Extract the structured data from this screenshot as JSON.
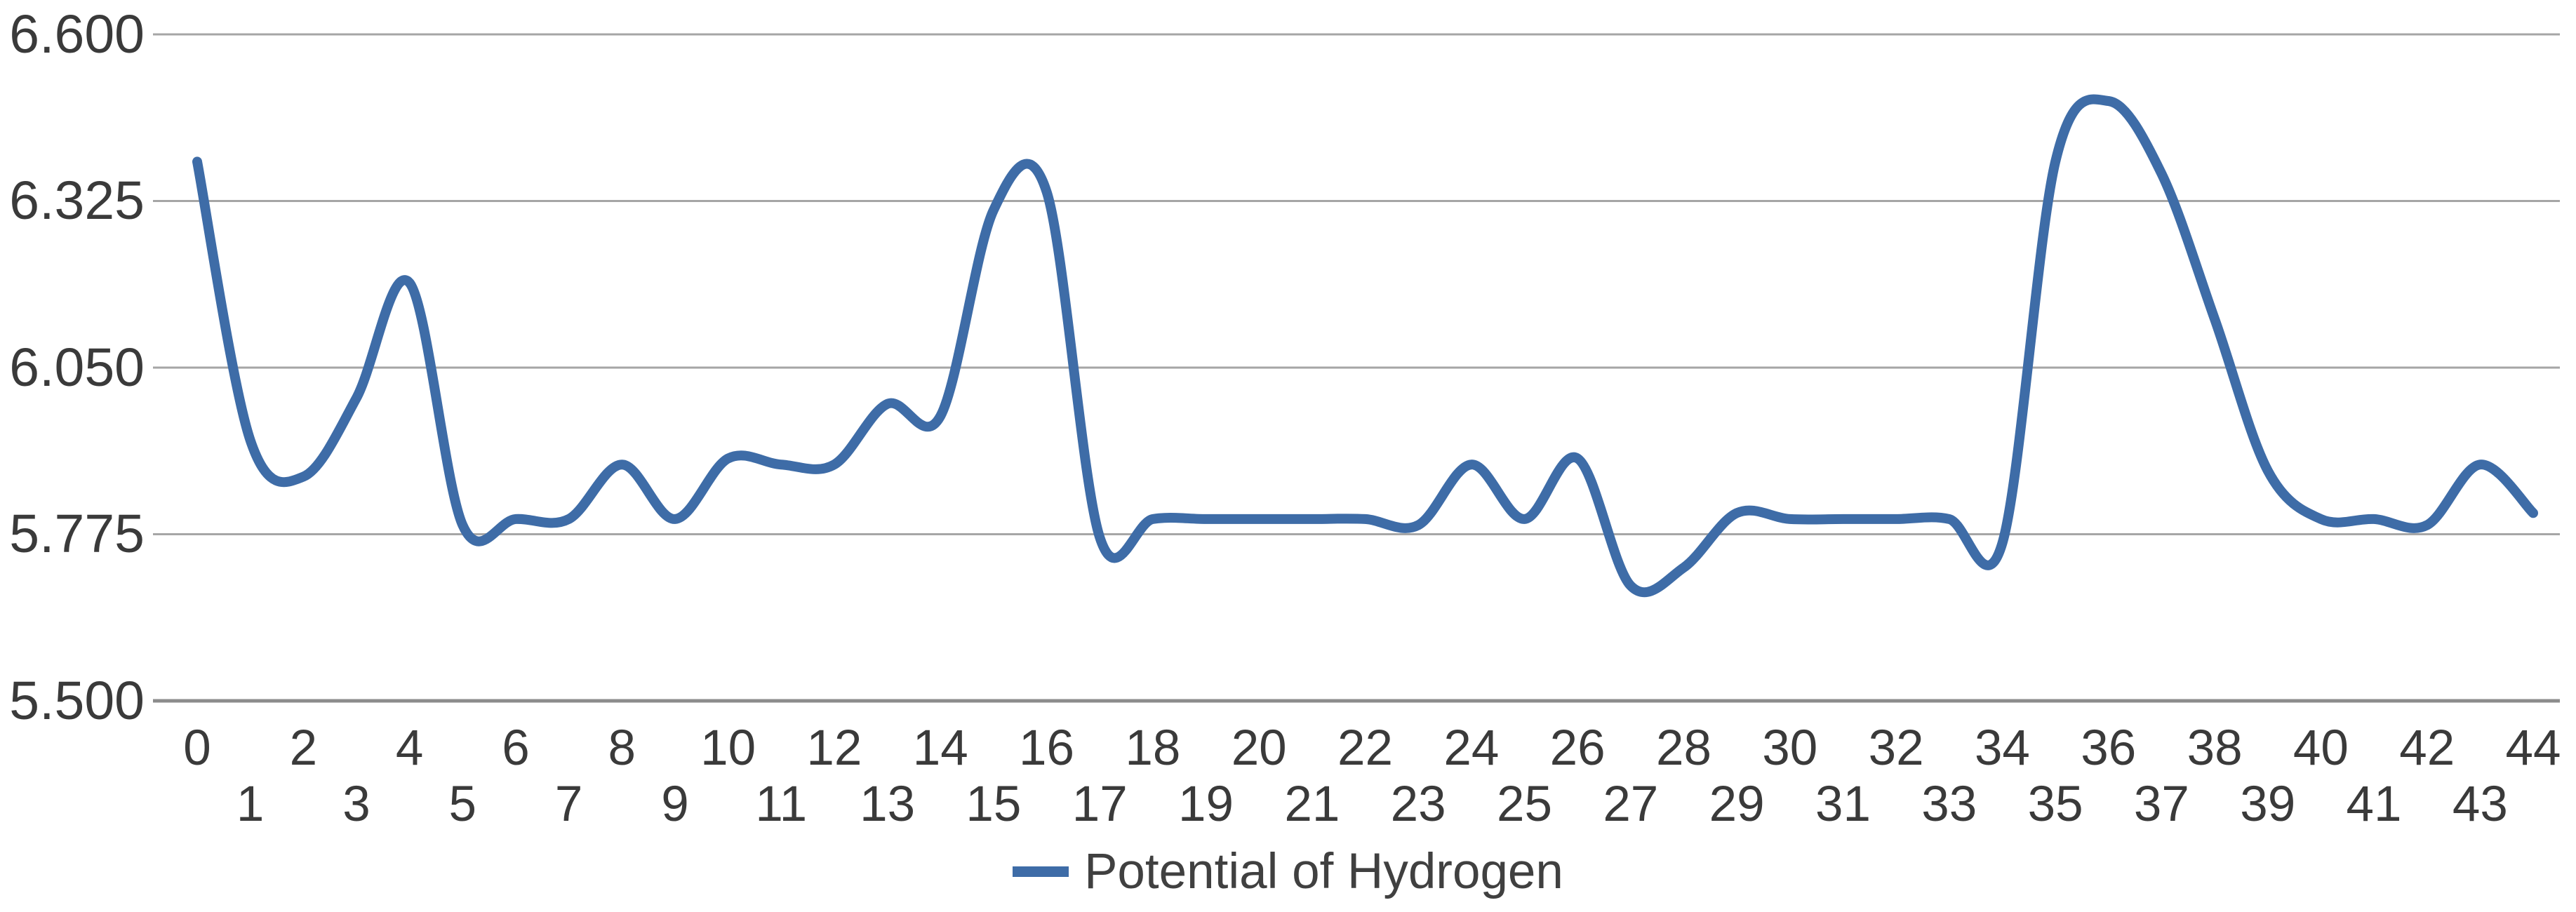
{
  "chart_data": {
    "type": "line",
    "series": [
      {
        "name": "Potential of Hydrogen",
        "x": [
          0,
          1,
          2,
          3,
          4,
          5,
          6,
          7,
          8,
          9,
          10,
          11,
          12,
          13,
          14,
          15,
          16,
          17,
          18,
          19,
          20,
          21,
          22,
          23,
          24,
          25,
          26,
          27,
          28,
          29,
          30,
          31,
          32,
          33,
          34,
          35,
          36,
          37,
          38,
          39,
          40,
          41,
          42,
          43,
          44
        ],
        "values": [
          6.39,
          5.93,
          5.87,
          6.0,
          6.19,
          5.79,
          5.8,
          5.8,
          5.89,
          5.8,
          5.9,
          5.89,
          5.89,
          5.99,
          5.97,
          6.31,
          6.34,
          5.77,
          5.8,
          5.8,
          5.8,
          5.8,
          5.8,
          5.79,
          5.89,
          5.8,
          5.9,
          5.69,
          5.72,
          5.81,
          5.8,
          5.8,
          5.8,
          5.8,
          5.76,
          6.39,
          6.49,
          6.37,
          6.13,
          5.88,
          5.8,
          5.8,
          5.79,
          5.89,
          5.81
        ]
      }
    ],
    "legend": "Potential of Hydrogen",
    "legend_position": "bottom",
    "title": "",
    "xlabel": "",
    "ylabel": "",
    "ylim": [
      5.5,
      6.6
    ],
    "y_tick_labels": [
      "6.600",
      "6.325",
      "6.050",
      "5.775",
      "5.500"
    ],
    "y_tick_values": [
      6.6,
      6.325,
      6.05,
      5.775,
      5.5
    ],
    "x_tick_labels_row1": [
      0,
      2,
      4,
      6,
      8,
      10,
      12,
      14,
      16,
      18,
      20,
      22,
      24,
      26,
      28,
      30,
      32,
      34,
      36,
      38,
      40,
      42,
      44
    ],
    "x_tick_labels_row2": [
      1,
      3,
      5,
      7,
      9,
      11,
      13,
      15,
      17,
      19,
      21,
      23,
      25,
      27,
      29,
      31,
      33,
      35,
      37,
      39,
      41,
      43
    ],
    "grid": true,
    "smoothed": true,
    "colors": {
      "line": "#3e6ca7",
      "gridline": "#a6a6a6",
      "axis_line": "#8c8c8c",
      "tick_text": "#3a3a3a",
      "legend_text": "#404040",
      "background": "#ffffff"
    }
  }
}
